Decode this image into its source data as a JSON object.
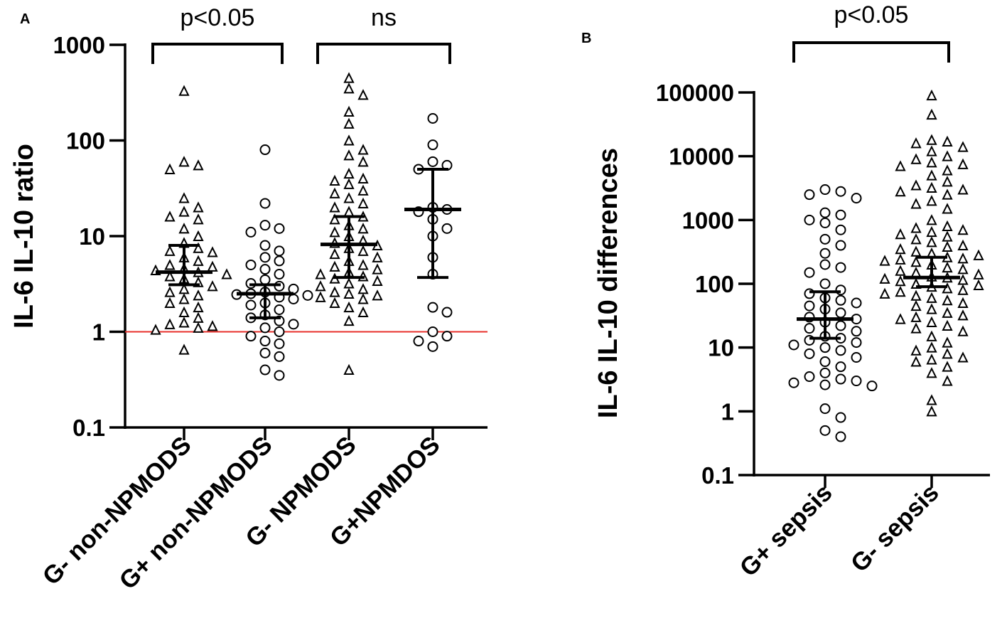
{
  "chart_data": [
    {
      "panel": "A",
      "type": "scatter",
      "yscale": "log",
      "ylim": [
        0.1,
        1000
      ],
      "yticks": [
        0.1,
        1,
        10,
        100,
        1000
      ],
      "ytick_labels": [
        "0.1",
        "1",
        "10",
        "100",
        "1000"
      ],
      "ylabel": "IL-6 IL-10 ratio",
      "categories": [
        "G- non-NPMODS",
        "G+ non-NPMODS",
        "G- NPMODS",
        "G+NPMDOS"
      ],
      "reference_line": {
        "value": 1,
        "color": "#e8312c"
      },
      "series": [
        {
          "name": "G- non-NPMODS",
          "marker": "triangle",
          "median": 4.2,
          "iqr": [
            3.1,
            8.0
          ],
          "values": [
            330,
            60,
            55,
            50,
            25,
            20,
            18,
            16,
            15,
            12,
            10,
            8.5,
            7.5,
            7,
            6.8,
            6,
            5.5,
            5,
            4.8,
            4.6,
            4.4,
            4.2,
            4.0,
            3.8,
            3.6,
            3.3,
            3.0,
            2.8,
            2.6,
            2.4,
            2.2,
            2.0,
            1.8,
            1.6,
            1.4,
            1.25,
            1.2,
            1.15,
            1.1,
            1.05,
            0.65
          ]
        },
        {
          "name": "G+ non-NPMODS",
          "marker": "circle",
          "median": 2.5,
          "iqr": [
            1.4,
            3.1
          ],
          "values": [
            80,
            22,
            13,
            12,
            11,
            8,
            7,
            6,
            5.5,
            5,
            4.5,
            4,
            3.5,
            3.2,
            3.0,
            2.8,
            2.6,
            2.5,
            2.45,
            2.4,
            2.3,
            2.2,
            2.0,
            1.9,
            1.7,
            1.5,
            1.4,
            1.3,
            1.2,
            1.1,
            1.0,
            0.9,
            0.8,
            0.75,
            0.6,
            0.55,
            0.4,
            0.35
          ]
        },
        {
          "name": "G- NPMODS",
          "marker": "triangle",
          "median": 8.2,
          "iqr": [
            3.7,
            16
          ],
          "values": [
            450,
            350,
            300,
            200,
            150,
            100,
            80,
            70,
            60,
            45,
            40,
            38,
            35,
            30,
            28,
            25,
            22,
            20,
            18,
            16,
            15,
            13,
            12,
            11,
            10,
            9,
            8.5,
            8,
            7.5,
            7,
            6.5,
            6,
            5.5,
            5,
            4.8,
            4.5,
            4.2,
            4.0,
            3.8,
            3.6,
            3.4,
            3.2,
            3.0,
            2.8,
            2.6,
            2.5,
            2.4,
            2.3,
            2.2,
            2.0,
            1.8,
            1.6,
            1.3,
            0.4
          ]
        },
        {
          "name": "G+NPMDOS",
          "marker": "circle",
          "median": 19,
          "iqr": [
            3.7,
            50
          ],
          "values": [
            170,
            90,
            60,
            55,
            50,
            20,
            19,
            18,
            15,
            12,
            10,
            6,
            4,
            1.8,
            1.6,
            1.0,
            0.9,
            0.8,
            0.7
          ]
        }
      ],
      "comparisons": [
        {
          "groups": [
            "G- non-NPMODS",
            "G+ non-NPMODS"
          ],
          "label": "p<0.05"
        },
        {
          "groups": [
            "G- NPMODS",
            "G+NPMDOS"
          ],
          "label": "ns"
        }
      ]
    },
    {
      "panel": "B",
      "type": "scatter",
      "yscale": "log",
      "ylim": [
        0.1,
        100000
      ],
      "yticks": [
        0.1,
        1,
        10,
        100,
        1000,
        10000,
        100000
      ],
      "ytick_labels": [
        "0.1",
        "1",
        "10",
        "100",
        "1000",
        "10000",
        "100000"
      ],
      "ylabel": "IL-6  IL-10 differences",
      "categories": [
        "G+ sepsis",
        "G- sepsis"
      ],
      "series": [
        {
          "name": "G+ sepsis",
          "marker": "circle",
          "median": 28,
          "iqr": [
            14,
            75
          ],
          "values": [
            3000,
            2800,
            2500,
            2200,
            1300,
            1200,
            1000,
            900,
            700,
            500,
            400,
            300,
            200,
            180,
            150,
            100,
            80,
            70,
            60,
            55,
            50,
            45,
            40,
            35,
            30,
            28,
            25,
            22,
            20,
            18,
            15,
            14,
            13,
            12,
            11,
            10,
            9,
            8,
            7,
            6,
            5,
            4,
            3.5,
            3.2,
            3.0,
            2.8,
            2.6,
            2.5,
            1.1,
            0.8,
            0.5,
            0.4
          ]
        },
        {
          "name": "G- sepsis",
          "marker": "triangle",
          "median": 125,
          "iqr": [
            90,
            260
          ],
          "values": [
            90000,
            45000,
            18000,
            17000,
            16000,
            14000,
            12000,
            10000,
            9000,
            8000,
            7500,
            7000,
            6000,
            5000,
            4000,
            3500,
            3200,
            3000,
            2800,
            2500,
            2000,
            1800,
            1500,
            1000,
            800,
            750,
            700,
            650,
            600,
            550,
            500,
            450,
            400,
            380,
            350,
            320,
            300,
            280,
            260,
            250,
            240,
            230,
            220,
            200,
            180,
            170,
            160,
            150,
            140,
            130,
            125,
            120,
            115,
            110,
            100,
            95,
            90,
            85,
            80,
            75,
            70,
            65,
            60,
            55,
            50,
            45,
            40,
            35,
            32,
            30,
            28,
            25,
            22,
            20,
            18,
            15,
            12,
            10,
            9,
            8,
            7,
            6.5,
            6,
            5,
            4,
            3,
            1.5,
            1.0
          ]
        }
      ],
      "comparisons": [
        {
          "groups": [
            "G+ sepsis",
            "G- sepsis"
          ],
          "label": "p<0.05"
        }
      ]
    }
  ]
}
